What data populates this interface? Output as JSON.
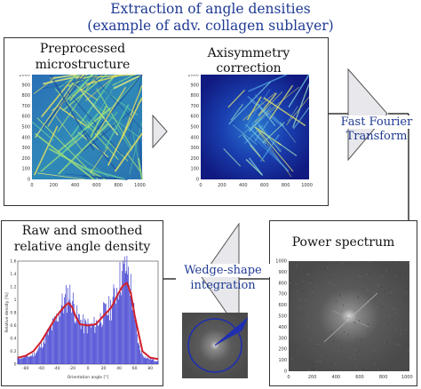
{
  "title": {
    "line1": "Extraction of angle densities",
    "line2": "(example of adv. collagen sublayer)"
  },
  "panels": {
    "preprocessed": {
      "caption_line1": "Preprocessed",
      "caption_line2": "microstructure",
      "y_ticks": [
        "1000",
        "900",
        "800",
        "700",
        "600",
        "500",
        "400",
        "300",
        "200",
        "100",
        "0"
      ],
      "x_ticks": [
        "0",
        "200",
        "400",
        "600",
        "800",
        "1000"
      ]
    },
    "axisymmetry": {
      "caption": "Axisymmetry correction",
      "y_ticks": [
        "1000",
        "900",
        "800",
        "700",
        "600",
        "500",
        "400",
        "300",
        "200",
        "100",
        "0"
      ],
      "x_ticks": [
        "0",
        "200",
        "400",
        "600",
        "800",
        "1000"
      ]
    },
    "power_spectrum": {
      "caption": "Power spectrum",
      "y_ticks": [
        "1000",
        "900",
        "800",
        "700",
        "600",
        "500",
        "400",
        "300",
        "200",
        "100",
        "0"
      ],
      "x_ticks": [
        "0",
        "200",
        "400",
        "600",
        "800",
        "1000"
      ]
    },
    "angle_density": {
      "caption_line1": "Raw and smoothed",
      "caption_line2": "relative angle density",
      "ylabel": "Relative density [%]",
      "xlabel": "Orientation angle [°]",
      "y_ticks": [
        "1.6",
        "1.4",
        "1.2",
        "1",
        "0.8",
        "0.6",
        "0.4",
        "0.2",
        "0"
      ],
      "x_ticks": [
        "-80",
        "-60",
        "-40",
        "-20",
        "0",
        "20",
        "40",
        "60",
        "80"
      ]
    }
  },
  "labels": {
    "fft_line1": "Fast Fourier",
    "fft_line2": "Transform",
    "wedge_line1": "Wedge-shape",
    "wedge_line2": "integration"
  },
  "colors": {
    "title_blue": "#1f3a93",
    "raw_bars": "#3b3bd0",
    "smoothed_line": "#d0202a",
    "wedge_circle": "#1f2fb0"
  },
  "chart_data": {
    "type": "bar",
    "title": "",
    "xlabel": "Orientation angle [°]",
    "ylabel": "Relative density [%]",
    "xlim": [
      -90,
      90
    ],
    "ylim": [
      0,
      1.6
    ],
    "series": [
      {
        "x": [
          -90,
          -85,
          -80,
          -75,
          -70,
          -65,
          -60,
          -55,
          -50,
          -45,
          -40,
          -35,
          -30,
          -25,
          -20,
          -15,
          -10,
          -5,
          0,
          5,
          10,
          15,
          20,
          25,
          30,
          35,
          40,
          45,
          50,
          55,
          60,
          65,
          70,
          75,
          80,
          85,
          90
        ],
        "values": [
          0.1,
          0.1,
          0.12,
          0.12,
          0.15,
          0.2,
          0.3,
          0.4,
          0.5,
          0.6,
          0.7,
          0.9,
          0.95,
          1.1,
          1.0,
          0.75,
          0.7,
          0.6,
          0.6,
          0.58,
          0.62,
          0.7,
          0.78,
          0.82,
          0.9,
          1.1,
          1.3,
          1.4,
          1.55,
          1.2,
          0.7,
          0.3,
          0.15,
          0.1,
          0.08,
          0.06,
          0.05
        ]
      },
      {
        "x": [
          -90,
          -80,
          -70,
          -60,
          -50,
          -40,
          -30,
          -25,
          -20,
          -15,
          -10,
          0,
          10,
          20,
          30,
          40,
          45,
          50,
          55,
          60,
          70,
          80,
          90
        ],
        "values": [
          0.1,
          0.13,
          0.2,
          0.35,
          0.55,
          0.75,
          0.9,
          0.95,
          0.88,
          0.72,
          0.62,
          0.6,
          0.62,
          0.75,
          0.88,
          1.12,
          1.22,
          1.26,
          1.1,
          0.75,
          0.2,
          0.1,
          0.08
        ]
      }
    ]
  }
}
